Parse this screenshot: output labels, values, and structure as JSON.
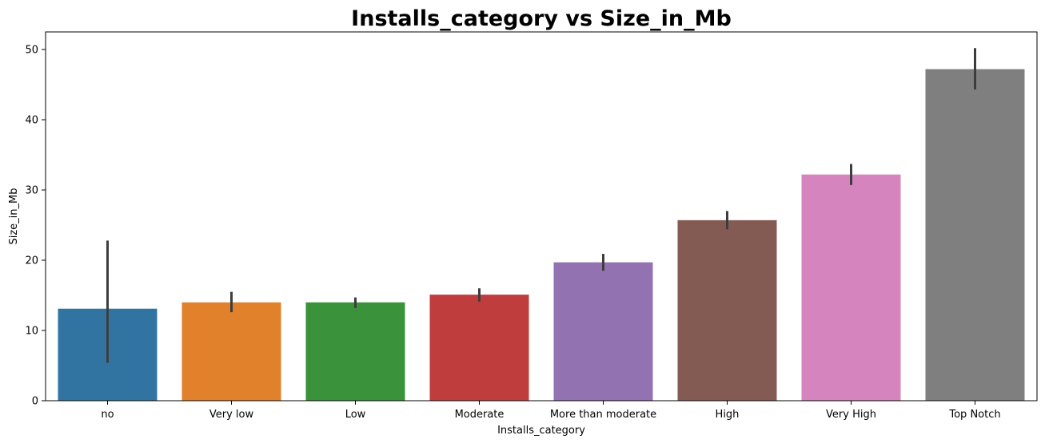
{
  "chart_data": {
    "type": "bar",
    "title": "Installs_category vs Size_in_Mb",
    "xlabel": "Installs_category",
    "ylabel": "Size_in_Mb",
    "ylim": [
      0,
      52.5
    ],
    "yticks": [
      0,
      10,
      20,
      30,
      40,
      50
    ],
    "categories": [
      "no",
      "Very low",
      "Low",
      "Moderate",
      "More than moderate",
      "High",
      "Very High",
      "Top Notch"
    ],
    "values": [
      13.1,
      14.0,
      14.0,
      15.1,
      19.7,
      25.7,
      32.2,
      47.2
    ],
    "error_low": [
      5.4,
      12.6,
      13.2,
      14.1,
      18.5,
      24.4,
      30.7,
      44.3
    ],
    "error_high": [
      22.8,
      15.5,
      14.7,
      16.0,
      20.9,
      27.0,
      33.7,
      50.2
    ],
    "colors": [
      "#3274a1",
      "#e1812c",
      "#3a923a",
      "#c03d3e",
      "#9372b2",
      "#845b53",
      "#d684bd",
      "#7f7f7f"
    ],
    "grid": false,
    "legend": "none"
  }
}
